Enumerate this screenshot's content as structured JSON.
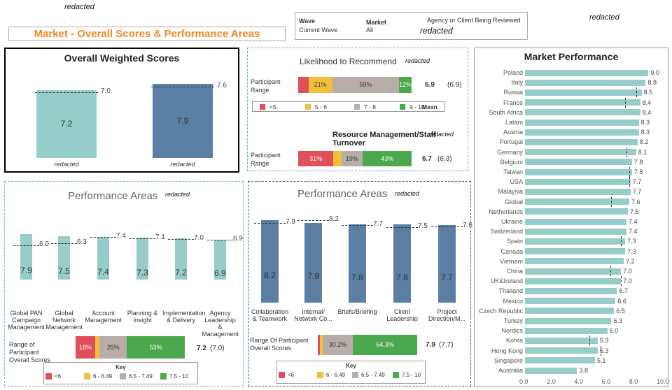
{
  "redacted_label": "redacted",
  "page_title": "Market - Overall Scores & Performance Areas",
  "filters": {
    "wave_label": "Wave",
    "wave_value": "Current Wave",
    "market_label": "Market",
    "market_value": "All",
    "agency_label": "Agency or Client Being Reviewed",
    "agency_value": "redacted"
  },
  "overall": {
    "title": "Overall Weighted Scores",
    "bars": [
      {
        "value": "7.2",
        "mean": "7.0",
        "label": "redacted"
      },
      {
        "value": "7.9",
        "mean": "7.6",
        "label": "redacted"
      }
    ]
  },
  "ltr": {
    "title": "Likelihood to Recommend",
    "row_label": "Participant Range",
    "segments": [
      "",
      "21%",
      "59%",
      "12%"
    ],
    "score": "6.9",
    "prev": "(6.9)",
    "key": [
      {
        "label": "<5"
      },
      {
        "label": "5 - 6"
      },
      {
        "label": "7 - 8"
      },
      {
        "label": "9 - 10"
      }
    ],
    "key_mean": "Mean"
  },
  "rm": {
    "title": "Resource Management/Staff Turnover",
    "row_label": "Participant Range",
    "segments": [
      "31%",
      "",
      "19%",
      "43%"
    ],
    "score": "6.7",
    "prev": "(6.3)"
  },
  "pa_left": {
    "title": "Performance Areas",
    "bars": [
      {
        "value": "7.9",
        "mean": "6.0",
        "label": "Global PAN Campaign Management"
      },
      {
        "value": "7.5",
        "mean": "6.3",
        "label": "Global Network Management"
      },
      {
        "value": "7.4",
        "mean": "7.4",
        "label": "Account Management"
      },
      {
        "value": "7.3",
        "mean": "7.1",
        "label": "Planning & Insight"
      },
      {
        "value": "7.2",
        "mean": "7.0",
        "label": "Implementation & Delivery"
      },
      {
        "value": "6.9",
        "mean": "6.9",
        "label": "Agency Leadership & Management"
      }
    ],
    "range_label": "Range of Participant Overall Scores",
    "segments": [
      "18%",
      "",
      "25%",
      "53%"
    ],
    "score": "7.2",
    "prev": "(7.0)",
    "key_title": "Key",
    "key": [
      "<6",
      "6 - 6.49",
      "6.5 - 7.49",
      "7.5 - 10"
    ]
  },
  "pa_right": {
    "title": "Performance Areas",
    "bars": [
      {
        "value": "8.2",
        "mean": "7.9",
        "label": "Collaboration & Teamwork"
      },
      {
        "value": "7.9",
        "mean": "8.2",
        "label": "Internal/ Network Co..."
      },
      {
        "value": "7.8",
        "mean": "7.7",
        "label": "Briefs/Briefing"
      },
      {
        "value": "7.8",
        "mean": "7.5",
        "label": "Client Leadership"
      },
      {
        "value": "7.7",
        "mean": "7.6",
        "label": "Project Direction/M..."
      }
    ],
    "range_label": "Range Of Participant Overall Scores",
    "segments": [
      "",
      "",
      "30.2%",
      "64.3%"
    ],
    "score": "7.9",
    "prev": "(7.7)",
    "key_title": "Key",
    "key": [
      "<6",
      "6 - 6.49",
      "6.5 - 7.49",
      "7.5 - 10"
    ]
  },
  "market": {
    "title": "Market Performance",
    "axis": [
      "0.0",
      "2.0",
      "4.0",
      "6.0",
      "8.0",
      "10.0"
    ],
    "rows": [
      {
        "name": "Poland",
        "value": 9.0,
        "label": "9.0"
      },
      {
        "name": "Italy",
        "value": 8.8,
        "label": "8.8"
      },
      {
        "name": "Russia",
        "value": 8.5,
        "label": "8.5",
        "mean": 8.1
      },
      {
        "name": "France",
        "value": 8.4,
        "label": "8.4",
        "mean": 7.3
      },
      {
        "name": "South Africa",
        "value": 8.4,
        "label": "8.4"
      },
      {
        "name": "Latam",
        "value": 8.3,
        "label": "8.3"
      },
      {
        "name": "Austria",
        "value": 8.3,
        "label": "8.3"
      },
      {
        "name": "Portugal",
        "value": 8.2,
        "label": "8.2"
      },
      {
        "name": "Germany",
        "value": 8.1,
        "label": "8.1",
        "mean": 7.4
      },
      {
        "name": "Belgium",
        "value": 7.8,
        "label": "7.8"
      },
      {
        "name": "Taiwan",
        "value": 7.8,
        "label": "7.8",
        "mean": 7.6
      },
      {
        "name": "USA",
        "value": 7.7,
        "label": "7.7",
        "mean": 7.6
      },
      {
        "name": "Malaysia",
        "value": 7.7,
        "label": "7.7"
      },
      {
        "name": "Global",
        "value": 7.6,
        "label": "7.6",
        "mean": 6.3
      },
      {
        "name": "Netherlands",
        "value": 7.5,
        "label": "7.5"
      },
      {
        "name": "Ukraine",
        "value": 7.4,
        "label": "7.4"
      },
      {
        "name": "Switzerland",
        "value": 7.4,
        "label": "7.4"
      },
      {
        "name": "Spain",
        "value": 7.3,
        "label": "7.3",
        "mean": 7.0
      },
      {
        "name": "Canada",
        "value": 7.3,
        "label": "7.3"
      },
      {
        "name": "Vietnam",
        "value": 7.2,
        "label": "7.2"
      },
      {
        "name": "China",
        "value": 7.0,
        "label": "7.0",
        "mean": 6.2
      },
      {
        "name": "UK&Ireland",
        "value": 7.0,
        "label": "7.0",
        "mean": 7.0
      },
      {
        "name": "Thailand",
        "value": 6.7,
        "label": "6.7"
      },
      {
        "name": "Mexico",
        "value": 6.6,
        "label": "6.6"
      },
      {
        "name": "Czech Republic",
        "value": 6.5,
        "label": "6.5"
      },
      {
        "name": "Turkey",
        "value": 6.3,
        "label": "6.3"
      },
      {
        "name": "Nordics",
        "value": 6.0,
        "label": "6.0"
      },
      {
        "name": "Korea",
        "value": 5.3,
        "label": "5.3",
        "mean": 4.7
      },
      {
        "name": "Hong Kong",
        "value": 5.3,
        "label": "5.3",
        "mean": 5.5
      },
      {
        "name": "Singapore",
        "value": 5.1,
        "label": "5.1"
      },
      {
        "name": "Australia",
        "value": 3.8,
        "label": "3.8"
      }
    ]
  },
  "colors": {
    "teal": "#96cdc8",
    "blue": "#5a7fa3",
    "red": "#e0505a",
    "yellow": "#f2c13a",
    "grey": "#b8ada9",
    "green": "#4ca84c",
    "orange": "#f08a24"
  }
}
